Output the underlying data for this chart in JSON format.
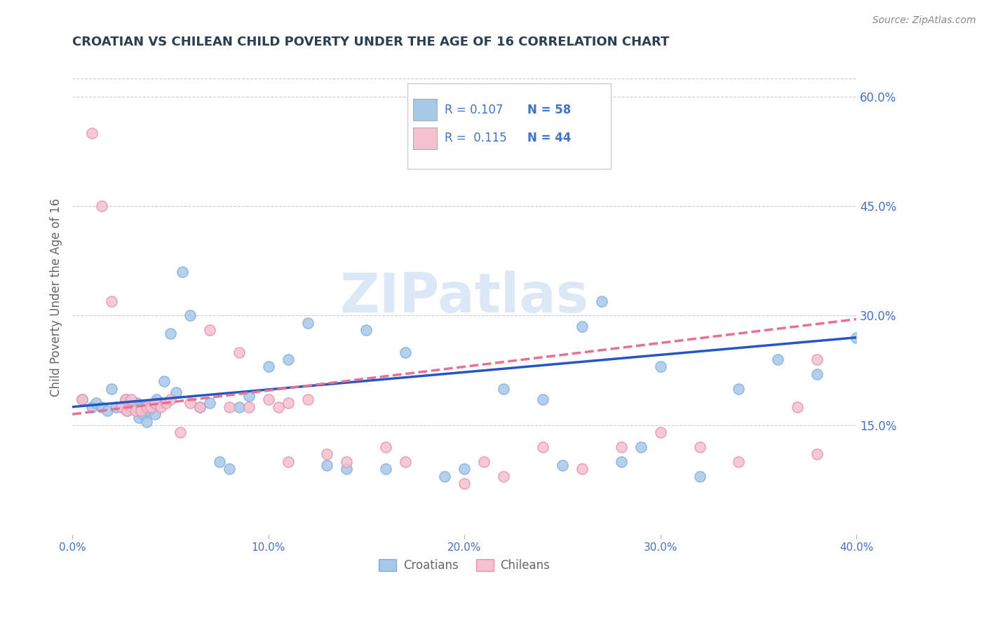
{
  "title": "CROATIAN VS CHILEAN CHILD POVERTY UNDER THE AGE OF 16 CORRELATION CHART",
  "source": "Source: ZipAtlas.com",
  "ylabel": "Child Poverty Under the Age of 16",
  "xlim": [
    0.0,
    0.4
  ],
  "ylim": [
    0.0,
    0.65
  ],
  "xticks": [
    0.0,
    0.1,
    0.2,
    0.3,
    0.4
  ],
  "xtick_labels": [
    "0.0%",
    "10.0%",
    "20.0%",
    "30.0%",
    "40.0%"
  ],
  "yticks_right": [
    0.15,
    0.3,
    0.45,
    0.6
  ],
  "ytick_labels_right": [
    "15.0%",
    "30.0%",
    "45.0%",
    "60.0%"
  ],
  "grid_color": "#cccccc",
  "background_color": "#ffffff",
  "title_color": "#2c3e50",
  "axis_label_color": "#666666",
  "tick_color": "#4472c4",
  "watermark_text": "ZIPatlas",
  "watermark_color": "#dce8f5",
  "croatian_color": "#a8c8e8",
  "croatian_edge_color": "#7eaee0",
  "chilean_color": "#f5c0d0",
  "chilean_edge_color": "#e890a8",
  "croatian_line_color": "#2457c5",
  "chilean_line_color": "#e87090",
  "legend_r1": "R = 0.107",
  "legend_n1": "N = 58",
  "legend_r2": "R =  0.115",
  "legend_n2": "N = 44",
  "legend_label1": "Croatians",
  "legend_label2": "Chileans",
  "cr_trend_start": 0.175,
  "cr_trend_end": 0.27,
  "ch_trend_start": 0.165,
  "ch_trend_end": 0.295,
  "croatian_x": [
    0.005,
    0.01,
    0.012,
    0.015,
    0.018,
    0.02,
    0.022,
    0.025,
    0.027,
    0.028,
    0.03,
    0.032,
    0.033,
    0.034,
    0.035,
    0.036,
    0.037,
    0.038,
    0.039,
    0.04,
    0.041,
    0.042,
    0.043,
    0.045,
    0.047,
    0.05,
    0.053,
    0.056,
    0.06,
    0.065,
    0.07,
    0.075,
    0.08,
    0.085,
    0.09,
    0.1,
    0.11,
    0.12,
    0.13,
    0.14,
    0.15,
    0.16,
    0.17,
    0.19,
    0.2,
    0.22,
    0.25,
    0.27,
    0.29,
    0.3,
    0.32,
    0.34,
    0.36,
    0.38,
    0.4,
    0.28,
    0.26,
    0.24
  ],
  "croatian_y": [
    0.185,
    0.175,
    0.18,
    0.175,
    0.17,
    0.2,
    0.175,
    0.175,
    0.185,
    0.17,
    0.175,
    0.175,
    0.18,
    0.16,
    0.175,
    0.165,
    0.175,
    0.155,
    0.17,
    0.175,
    0.175,
    0.165,
    0.185,
    0.18,
    0.21,
    0.275,
    0.195,
    0.36,
    0.3,
    0.175,
    0.18,
    0.1,
    0.09,
    0.175,
    0.19,
    0.23,
    0.24,
    0.29,
    0.095,
    0.09,
    0.28,
    0.09,
    0.25,
    0.08,
    0.09,
    0.2,
    0.095,
    0.32,
    0.12,
    0.23,
    0.08,
    0.2,
    0.24,
    0.22,
    0.27,
    0.1,
    0.285,
    0.185
  ],
  "chilean_x": [
    0.005,
    0.01,
    0.015,
    0.02,
    0.025,
    0.027,
    0.028,
    0.03,
    0.032,
    0.035,
    0.038,
    0.04,
    0.042,
    0.045,
    0.048,
    0.05,
    0.055,
    0.06,
    0.065,
    0.07,
    0.08,
    0.085,
    0.09,
    0.1,
    0.11,
    0.12,
    0.13,
    0.14,
    0.16,
    0.17,
    0.2,
    0.21,
    0.22,
    0.24,
    0.26,
    0.28,
    0.3,
    0.32,
    0.34,
    0.37,
    0.38,
    0.38,
    0.105,
    0.11
  ],
  "chilean_y": [
    0.185,
    0.55,
    0.45,
    0.32,
    0.175,
    0.185,
    0.17,
    0.185,
    0.17,
    0.17,
    0.175,
    0.175,
    0.18,
    0.175,
    0.18,
    0.185,
    0.14,
    0.18,
    0.175,
    0.28,
    0.175,
    0.25,
    0.175,
    0.185,
    0.1,
    0.185,
    0.11,
    0.1,
    0.12,
    0.1,
    0.07,
    0.1,
    0.08,
    0.12,
    0.09,
    0.12,
    0.14,
    0.12,
    0.1,
    0.175,
    0.11,
    0.24,
    0.175,
    0.18
  ]
}
